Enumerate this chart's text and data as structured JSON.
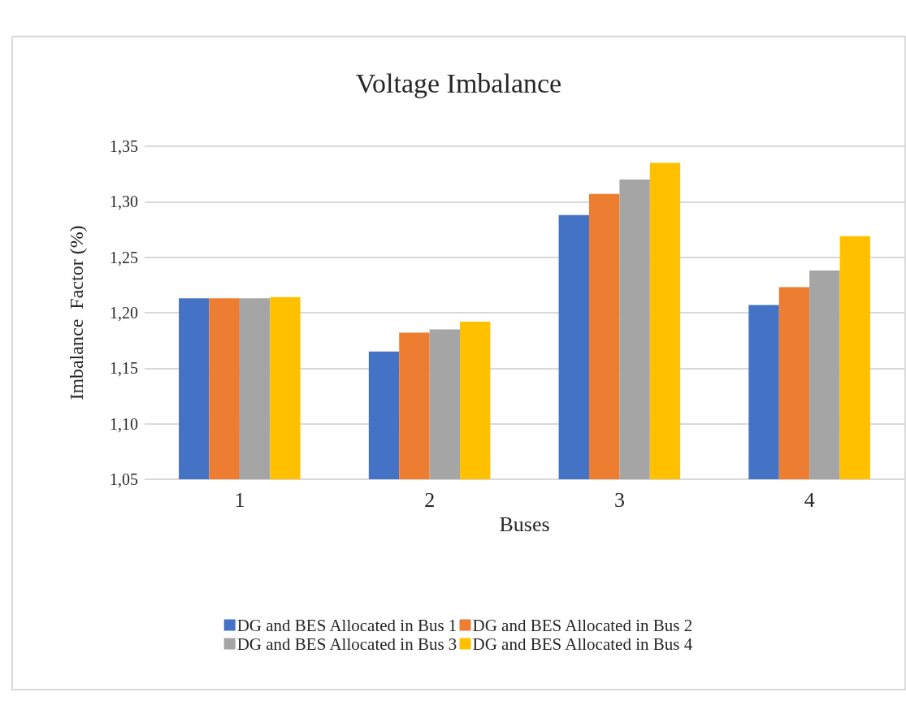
{
  "chart_data": {
    "type": "bar",
    "title": "Voltage Imbalance",
    "xlabel": "Buses",
    "ylabel": "Imbalance  Factor (%)",
    "categories": [
      "1",
      "2",
      "3",
      "4"
    ],
    "series": [
      {
        "name": "DG and BES Allocated in Bus 1",
        "color": "#4472c4",
        "values": [
          1.213,
          1.165,
          1.288,
          1.207
        ]
      },
      {
        "name": "DG and BES Allocated in Bus 2",
        "color": "#ed7d31",
        "values": [
          1.213,
          1.182,
          1.307,
          1.223
        ]
      },
      {
        "name": "DG and BES Allocated in Bus 3",
        "color": "#a5a5a5",
        "values": [
          1.213,
          1.185,
          1.32,
          1.238
        ]
      },
      {
        "name": "DG and BES Allocated in Bus 4",
        "color": "#ffc000",
        "values": [
          1.214,
          1.192,
          1.335,
          1.269
        ]
      }
    ],
    "ylim": [
      1.05,
      1.35
    ],
    "yticks": [
      {
        "value": 1.05,
        "label": "1,05"
      },
      {
        "value": 1.1,
        "label": "1,10"
      },
      {
        "value": 1.15,
        "label": "1,15"
      },
      {
        "value": 1.2,
        "label": "1,20"
      },
      {
        "value": 1.25,
        "label": "1,25"
      },
      {
        "value": 1.3,
        "label": "1,30"
      },
      {
        "value": 1.35,
        "label": "1,35"
      }
    ],
    "grid": "y",
    "legend": "bottom"
  }
}
